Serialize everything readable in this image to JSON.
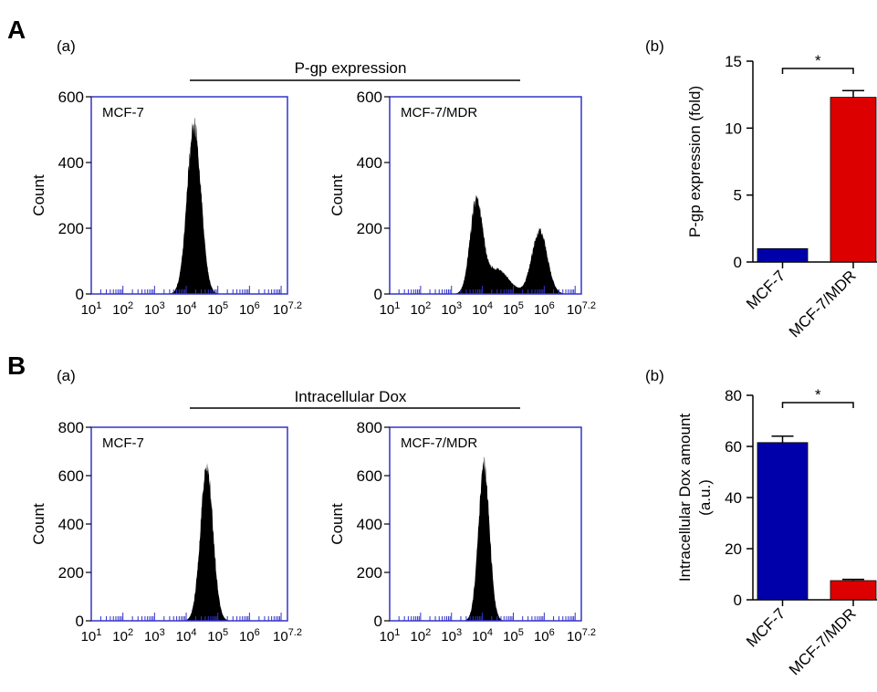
{
  "panels": [
    {
      "letter": "A",
      "sub_a": "(a)",
      "sub_b": "(b)",
      "header": "P-gp expression"
    },
    {
      "letter": "B",
      "sub_a": "(a)",
      "sub_b": "(b)",
      "header": "Intracellular Dox"
    }
  ],
  "chart_data": [
    {
      "id": "A-a-1",
      "type": "area",
      "subtype": "flow-cytometry-histogram",
      "label": "MCF-7",
      "ylabel": "Count",
      "ylim": [
        0,
        600
      ],
      "yticks": [
        0,
        200,
        400,
        600
      ],
      "xscale": "log",
      "xlim": [
        1,
        7.2
      ],
      "xtick_labels": [
        "10^1",
        "10^2",
        "10^3",
        "10^4",
        "10^5",
        "10^6",
        "10^7.2"
      ],
      "series": [
        {
          "peaks": [
            {
              "center_log": 4.25,
              "width_log": 0.22,
              "height": 545
            }
          ]
        }
      ],
      "colors": {
        "frame": "#3333cc",
        "fill": "#000000"
      }
    },
    {
      "id": "A-a-2",
      "type": "area",
      "subtype": "flow-cytometry-histogram",
      "label": "MCF-7/MDR",
      "ylabel": "Count",
      "ylim": [
        0,
        600
      ],
      "yticks": [
        0,
        200,
        400,
        600
      ],
      "xscale": "log",
      "xlim": [
        1,
        7.2
      ],
      "xtick_labels": [
        "10^1",
        "10^2",
        "10^3",
        "10^4",
        "10^5",
        "10^6",
        "10^7.2"
      ],
      "series": [
        {
          "peaks": [
            {
              "center_log": 3.8,
              "width_log": 0.2,
              "height": 290
            },
            {
              "center_log": 4.45,
              "width_log": 0.4,
              "height": 80
            },
            {
              "center_log": 5.85,
              "width_log": 0.25,
              "height": 205
            }
          ]
        }
      ],
      "colors": {
        "frame": "#3333cc",
        "fill": "#000000"
      }
    },
    {
      "id": "A-b",
      "type": "bar",
      "categories": [
        "MCF-7",
        "MCF-7/MDR"
      ],
      "values": [
        1.0,
        12.3
      ],
      "errors": [
        0,
        0.5
      ],
      "ylabel": "P-gp expression (fold)",
      "ylim": [
        0,
        15
      ],
      "yticks": [
        0,
        5,
        10,
        15
      ],
      "significance": "*",
      "colors": [
        "#0000aa",
        "#dd0000"
      ]
    },
    {
      "id": "B-a-1",
      "type": "area",
      "subtype": "flow-cytometry-histogram",
      "label": "MCF-7",
      "ylabel": "Count",
      "ylim": [
        0,
        800
      ],
      "yticks": [
        0,
        200,
        400,
        600,
        800
      ],
      "xscale": "log",
      "xlim": [
        1,
        7.2
      ],
      "xtick_labels": [
        "10^1",
        "10^2",
        "10^3",
        "10^4",
        "10^5",
        "10^6",
        "10^7.2"
      ],
      "series": [
        {
          "peaks": [
            {
              "center_log": 4.65,
              "width_log": 0.2,
              "height": 670
            }
          ]
        }
      ],
      "colors": {
        "frame": "#3333cc",
        "fill": "#000000"
      }
    },
    {
      "id": "B-a-2",
      "type": "area",
      "subtype": "flow-cytometry-histogram",
      "label": "MCF-7/MDR",
      "ylabel": "Count",
      "ylim": [
        0,
        800
      ],
      "yticks": [
        0,
        200,
        400,
        600,
        800
      ],
      "xscale": "log",
      "xlim": [
        1,
        7.2
      ],
      "xtick_labels": [
        "10^1",
        "10^2",
        "10^3",
        "10^4",
        "10^5",
        "10^6",
        "10^7.2"
      ],
      "series": [
        {
          "peaks": [
            {
              "center_log": 4.05,
              "width_log": 0.18,
              "height": 680
            }
          ]
        }
      ],
      "colors": {
        "frame": "#3333cc",
        "fill": "#000000"
      }
    },
    {
      "id": "B-b",
      "type": "bar",
      "categories": [
        "MCF-7",
        "MCF-7/MDR"
      ],
      "values": [
        61.5,
        7.5
      ],
      "errors": [
        2.5,
        0.5
      ],
      "ylabel": [
        "Intracellular Dox amount",
        "(a.u.)"
      ],
      "ylim": [
        0,
        80
      ],
      "yticks": [
        0,
        20,
        40,
        60,
        80
      ],
      "significance": "*",
      "colors": [
        "#0000aa",
        "#dd0000"
      ]
    }
  ]
}
